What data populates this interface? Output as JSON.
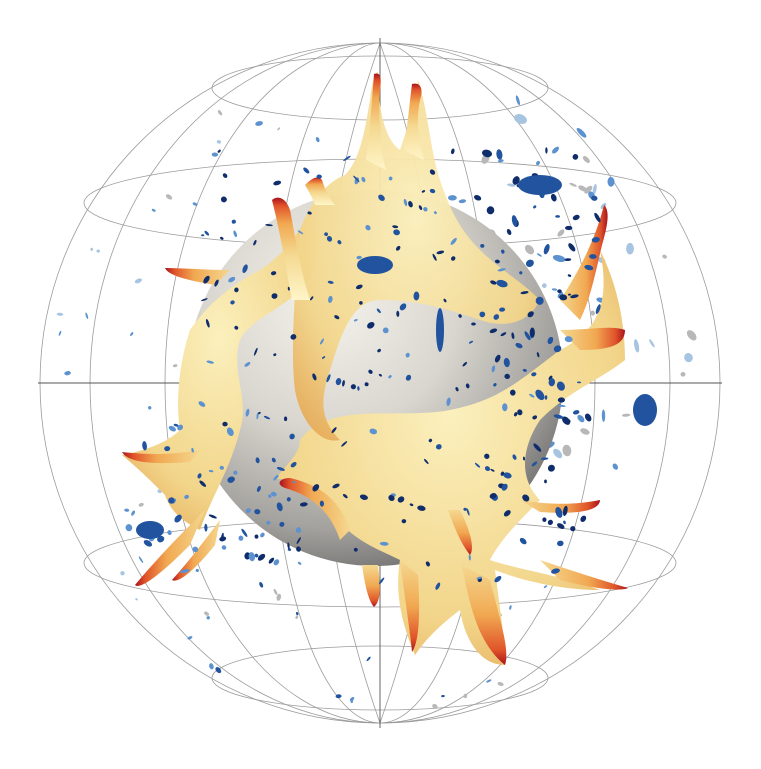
{
  "scene": {
    "background_color": "#ffffff",
    "outer_sphere": {
      "grid_color": "#8a8a8a",
      "axis_color": "#555555"
    },
    "inner_sphere": {
      "colors": [
        "#f4f2ec",
        "#d9d6cf",
        "#a4a29e",
        "#6e6e6e"
      ]
    },
    "hot_plumes": {
      "colors": [
        "#fff5c8",
        "#f4d890",
        "#f1a851",
        "#e0542a",
        "#a9131c"
      ]
    },
    "cold_blobs": {
      "colors": [
        "#0f2d6b",
        "#21539e",
        "#5b92cf",
        "#a7c4e0",
        "#b8b8b8"
      ]
    }
  }
}
